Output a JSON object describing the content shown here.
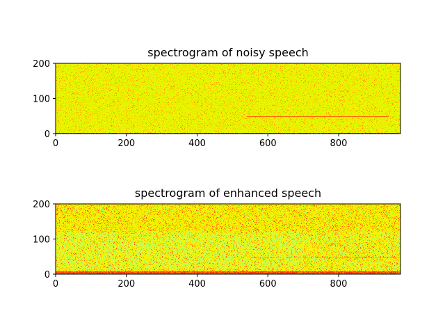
{
  "chart_data": [
    {
      "type": "heatmap",
      "title": "spectrogram of noisy speech",
      "xlabel": "",
      "ylabel": "",
      "xlim": [
        0,
        975
      ],
      "ylim": [
        0,
        200
      ],
      "xticks": [
        0,
        200,
        400,
        600,
        800
      ],
      "yticks": [
        0,
        100,
        200
      ],
      "tick_labels_x": [
        "0",
        "200",
        "400",
        "600",
        "800"
      ],
      "tick_labels_y": [
        "0",
        "100",
        "200"
      ],
      "colormap": "yellow-orange-red",
      "dominant_color": "#e6f500",
      "features": [
        {
          "kind": "horizontal-line",
          "y": 50,
          "x_start": 540,
          "x_end": 940,
          "color": "#ff6a00"
        },
        {
          "kind": "bottom-band",
          "y_from": 0,
          "y_to": 3,
          "color": "#d40000"
        }
      ]
    },
    {
      "type": "heatmap",
      "title": "spectrogram of enhanced speech",
      "xlabel": "",
      "ylabel": "",
      "xlim": [
        0,
        975
      ],
      "ylim": [
        0,
        200
      ],
      "xticks": [
        0,
        200,
        400,
        600,
        800
      ],
      "yticks": [
        0,
        100,
        200
      ],
      "tick_labels_x": [
        "0",
        "200",
        "400",
        "600",
        "800"
      ],
      "tick_labels_y": [
        "0",
        "100",
        "200"
      ],
      "colormap": "yellow-orange-red",
      "dominant_color": "#f2f200",
      "features": [
        {
          "kind": "horizontal-line",
          "y": 50,
          "x_start": 545,
          "x_end": 965,
          "color": "#ff8a00"
        },
        {
          "kind": "green-region",
          "y_from": 15,
          "y_to": 120,
          "color": "#c8ff50"
        },
        {
          "kind": "bottom-band",
          "y_from": 0,
          "y_to": 8,
          "color": "#ff3000"
        }
      ]
    }
  ]
}
